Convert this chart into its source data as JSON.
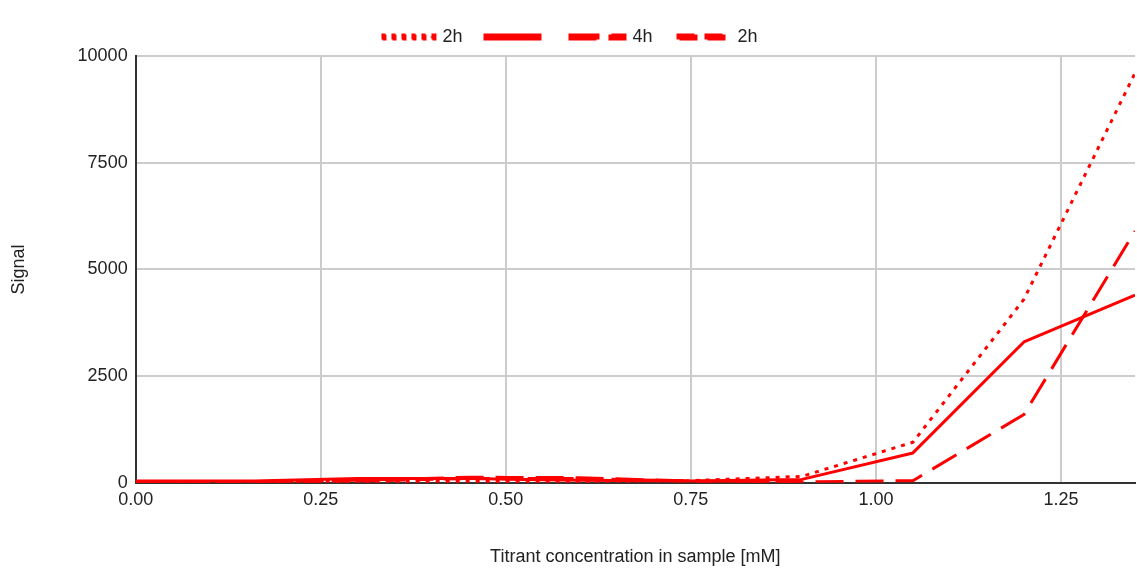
{
  "chart_data": {
    "type": "line",
    "xlabel": "Titrant concentration in sample [mM]",
    "ylabel": "Signal",
    "x": [
      0,
      0.15,
      0.3,
      0.45,
      0.6,
      0.75,
      0.9,
      1.05,
      1.2,
      1.35
    ],
    "xlim": [
      0,
      1.35
    ],
    "xticks": [
      {
        "value": 0,
        "label": "0.00"
      },
      {
        "value": 0.25,
        "label": "0.25"
      },
      {
        "value": 0.5,
        "label": "0.50"
      },
      {
        "value": 0.75,
        "label": "0.75"
      },
      {
        "value": 1,
        "label": "1.00"
      },
      {
        "value": 1.25,
        "label": "1.25"
      }
    ],
    "ylim": [
      0,
      10000
    ],
    "yticks": [
      0,
      2500,
      5000,
      7500,
      10000
    ],
    "grid": true,
    "legend": "top",
    "marker": "none",
    "series": [
      {
        "name": "2h",
        "color": "#ff0000",
        "line_style": "dotted",
        "values": [
          30,
          30,
          30,
          30,
          30,
          50,
          150,
          950,
          4300,
          9600
        ]
      },
      {
        "color": "#ff0000",
        "line_style": "solid",
        "values": [
          40,
          40,
          100,
          100,
          60,
          40,
          80,
          700,
          3300,
          4400
        ]
      },
      {
        "name": "4h",
        "color": "#ff0000",
        "line_style": "dashed",
        "values": [
          20,
          20,
          60,
          130,
          120,
          40,
          20,
          50,
          1600,
          5900
        ]
      },
      {
        "name": "2h",
        "color": "#ff0000",
        "line_style": "dashed",
        "values": [
          20,
          20,
          40,
          100,
          100,
          40,
          20,
          null,
          null,
          null
        ]
      }
    ]
  }
}
